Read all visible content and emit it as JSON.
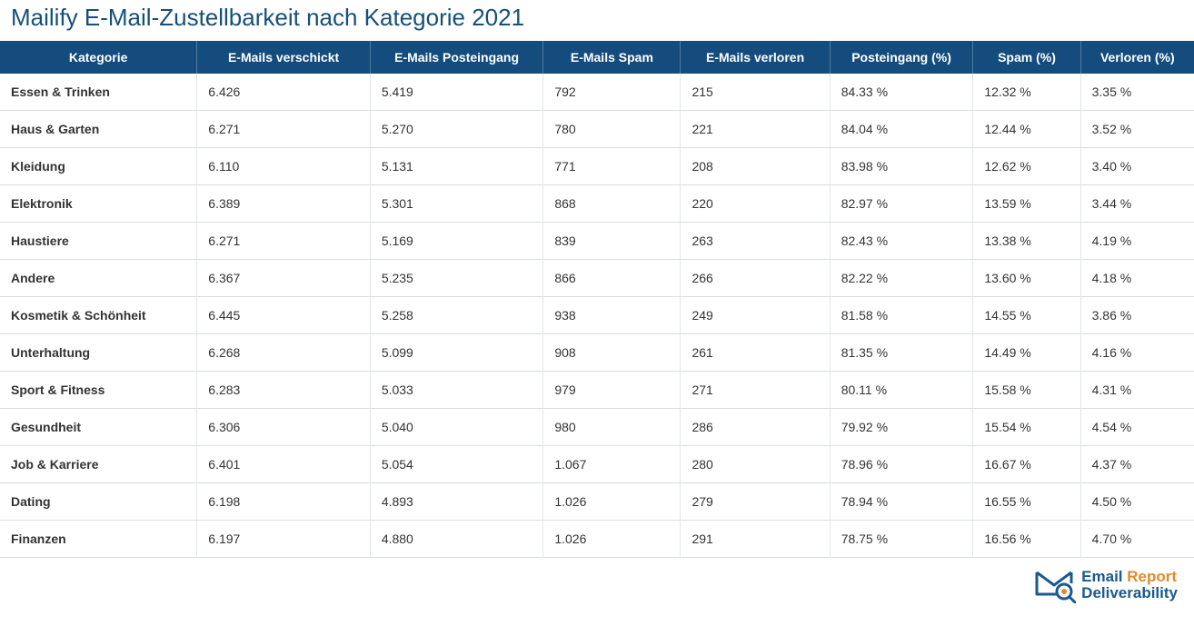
{
  "title": "Mailify E-Mail-Zustellbarkeit nach Kategorie 2021",
  "colors": {
    "title": "#15507a",
    "header_bg": "#144c7d",
    "header_text": "#ffffff",
    "body_text": "#333333",
    "row_border": "#d9dde1",
    "logo_blue": "#1a5a8e",
    "logo_orange": "#e08a2e"
  },
  "table": {
    "columns": [
      "Kategorie",
      "E-Mails verschickt",
      "E-Mails Posteingang",
      "E-Mails Spam",
      "E-Mails verloren",
      "Posteingang (%)",
      "Spam (%)",
      "Verloren (%)"
    ],
    "rows": [
      [
        "Essen & Trinken",
        "6.426",
        "5.419",
        "792",
        "215",
        "84.33 %",
        "12.32 %",
        "3.35 %"
      ],
      [
        "Haus & Garten",
        "6.271",
        "5.270",
        "780",
        "221",
        "84.04 %",
        "12.44 %",
        "3.52 %"
      ],
      [
        "Kleidung",
        "6.110",
        "5.131",
        "771",
        "208",
        "83.98 %",
        "12.62 %",
        "3.40 %"
      ],
      [
        "Elektronik",
        "6.389",
        "5.301",
        "868",
        "220",
        "82.97 %",
        "13.59 %",
        "3.44 %"
      ],
      [
        "Haustiere",
        "6.271",
        "5.169",
        "839",
        "263",
        "82.43 %",
        "13.38 %",
        "4.19 %"
      ],
      [
        "Andere",
        "6.367",
        "5.235",
        "866",
        "266",
        "82.22 %",
        "13.60 %",
        "4.18 %"
      ],
      [
        "Kosmetik & Schönheit",
        "6.445",
        "5.258",
        "938",
        "249",
        "81.58 %",
        "14.55 %",
        "3.86 %"
      ],
      [
        "Unterhaltung",
        "6.268",
        "5.099",
        "908",
        "261",
        "81.35 %",
        "14.49 %",
        "4.16 %"
      ],
      [
        "Sport & Fitness",
        "6.283",
        "5.033",
        "979",
        "271",
        "80.11 %",
        "15.58 %",
        "4.31 %"
      ],
      [
        "Gesundheit",
        "6.306",
        "5.040",
        "980",
        "286",
        "79.92 %",
        "15.54 %",
        "4.54 %"
      ],
      [
        "Job & Karriere",
        "6.401",
        "5.054",
        "1.067",
        "280",
        "78.96 %",
        "16.67 %",
        "4.37 %"
      ],
      [
        "Dating",
        "6.198",
        "4.893",
        "1.026",
        "279",
        "78.94 %",
        "16.55 %",
        "4.50 %"
      ],
      [
        "Finanzen",
        "6.197",
        "4.880",
        "1.026",
        "291",
        "78.75 %",
        "16.56 %",
        "4.70 %"
      ]
    ]
  },
  "logo": {
    "line1_a": "Email ",
    "line1_b": "Report",
    "line2": "Deliverability"
  }
}
